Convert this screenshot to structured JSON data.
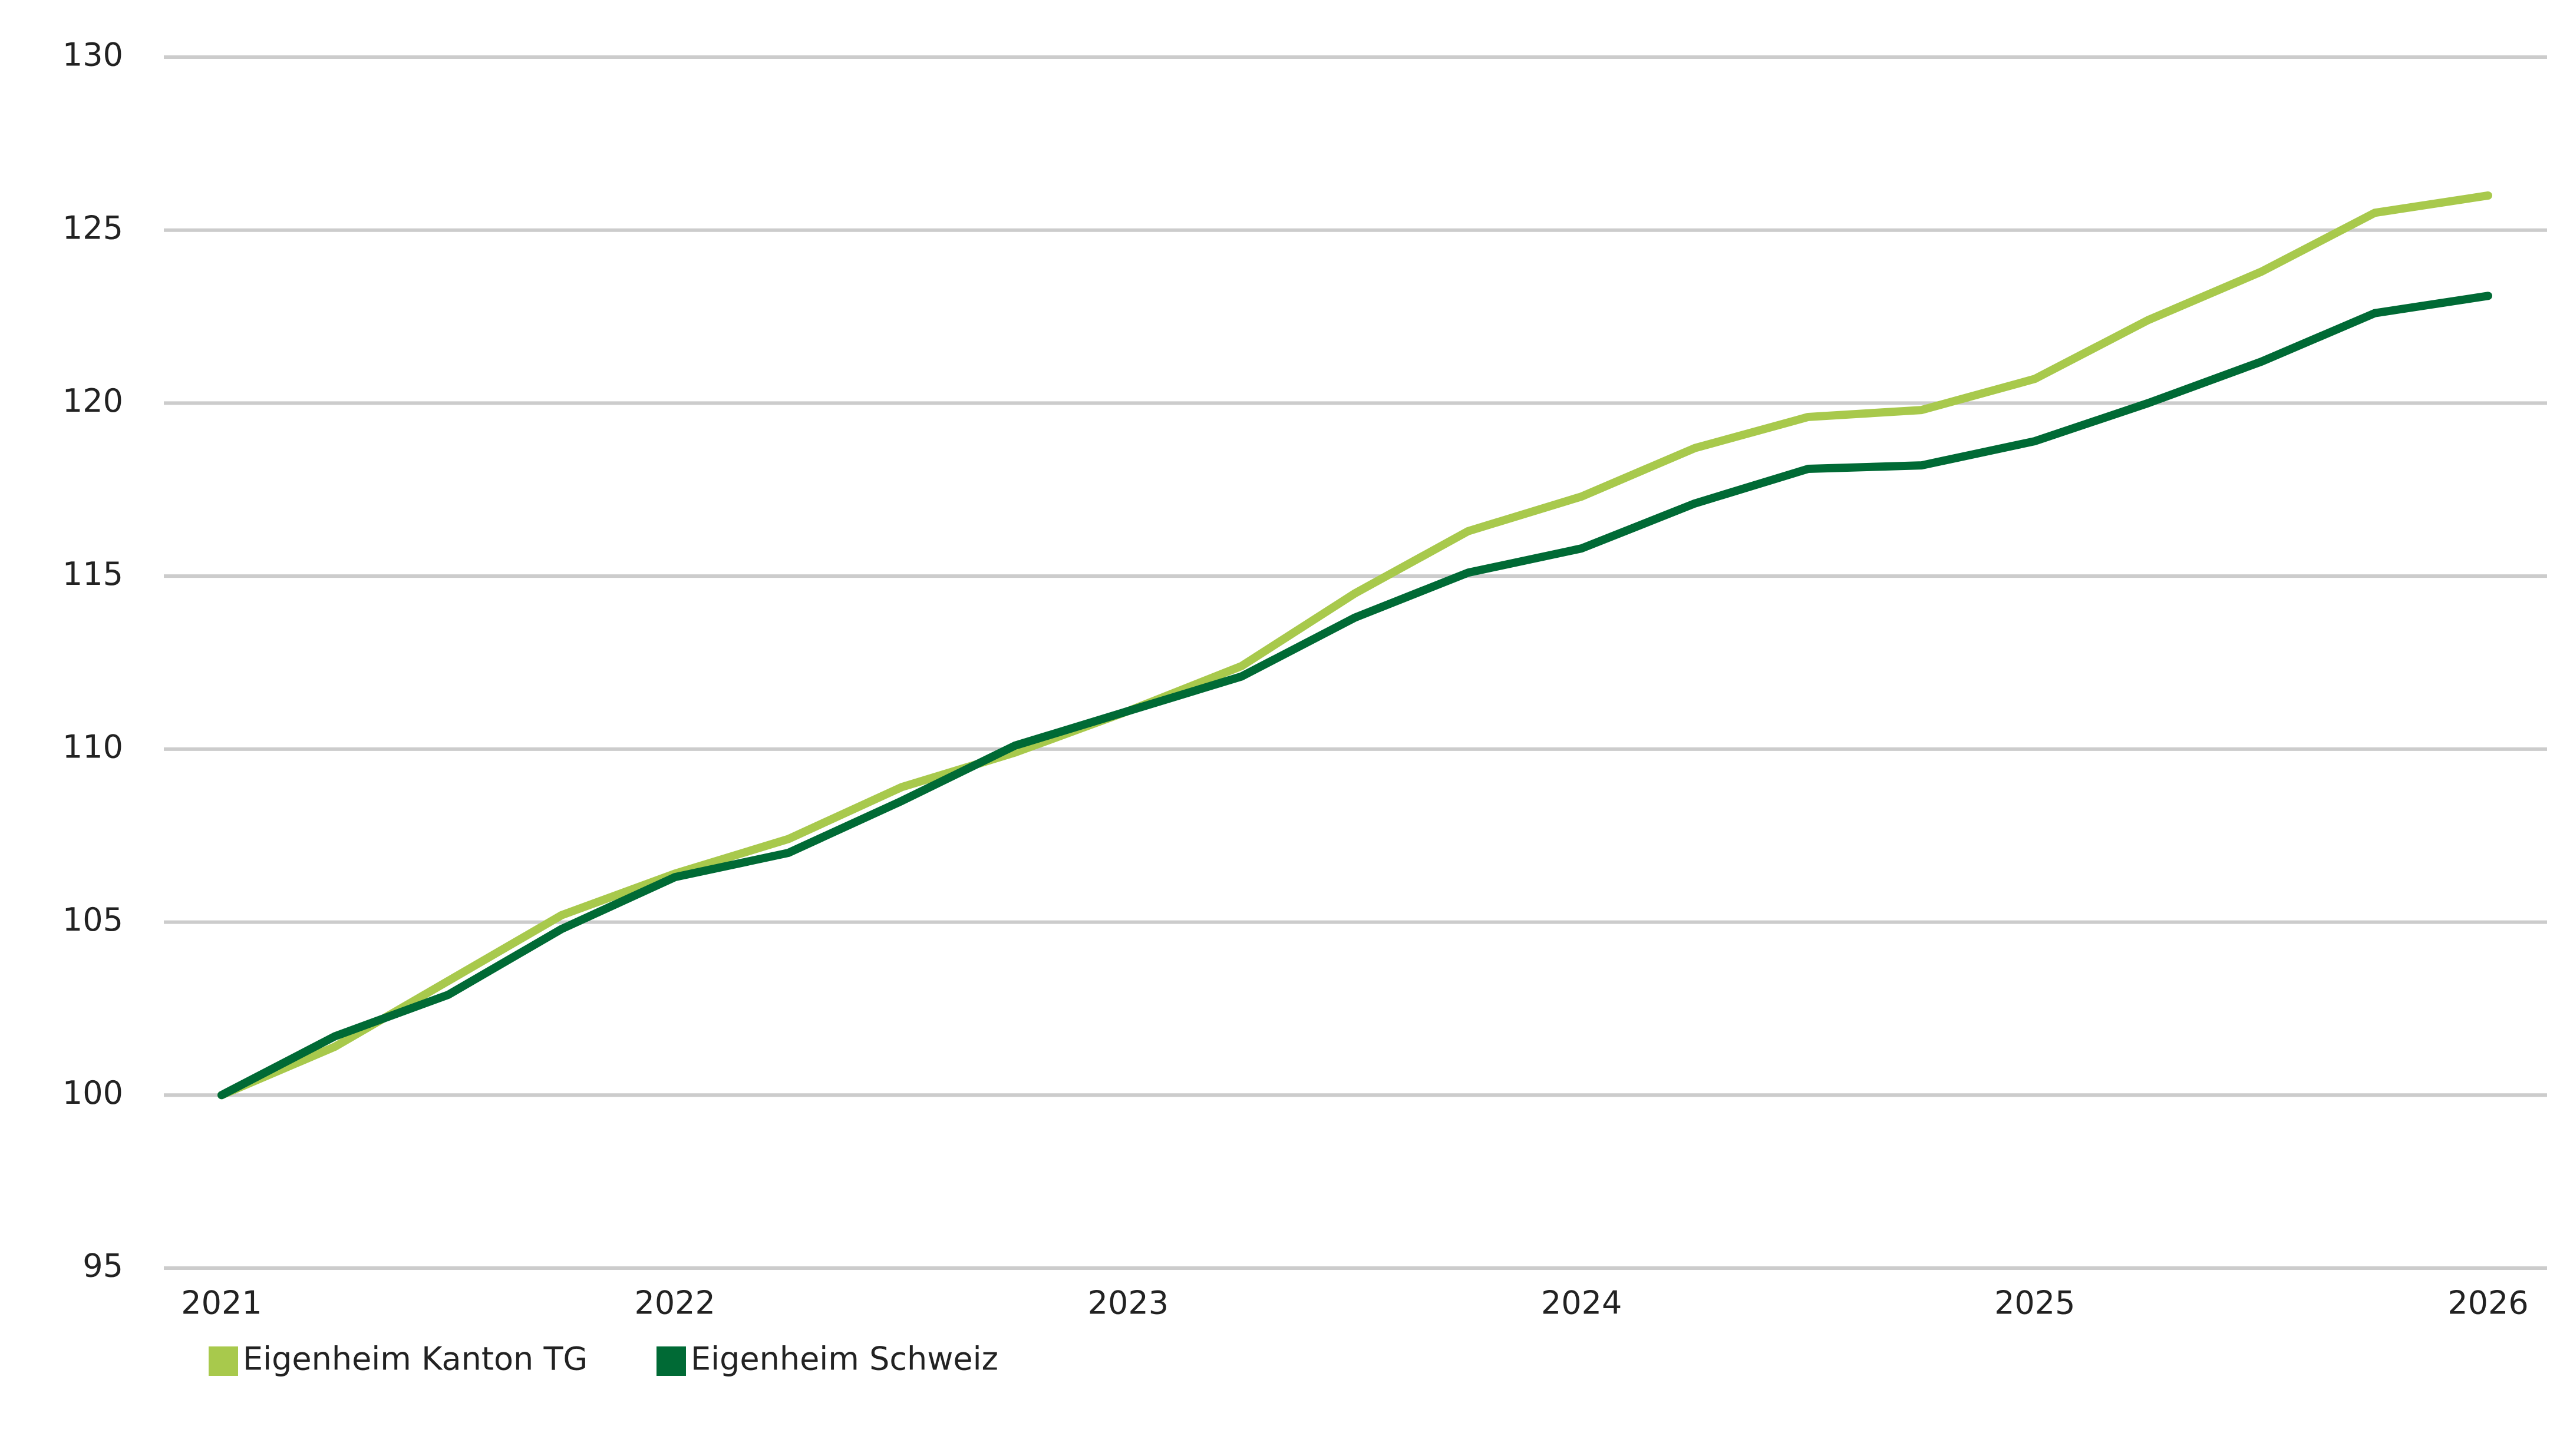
{
  "chart_data": {
    "type": "line",
    "x": [
      2021,
      2021.25,
      2021.5,
      2021.75,
      2022,
      2022.25,
      2022.5,
      2022.75,
      2023,
      2023.25,
      2023.5,
      2023.75,
      2024,
      2024.25,
      2024.5,
      2024.75,
      2025,
      2025.25,
      2025.5,
      2025.75,
      2026
    ],
    "series": [
      {
        "name": "Eigenheim Kanton TG",
        "color": "#a8c94c",
        "values": [
          100,
          101.4,
          103.3,
          105.2,
          106.4,
          107.4,
          108.9,
          109.9,
          111.1,
          112.4,
          114.5,
          116.3,
          117.3,
          118.7,
          119.6,
          119.8,
          120.7,
          122.4,
          123.8,
          125.5,
          126.0
        ]
      },
      {
        "name": "Eigenheim Schweiz",
        "color": "#006a35",
        "values": [
          100,
          101.7,
          102.9,
          104.8,
          106.3,
          107.0,
          108.5,
          110.1,
          111.1,
          112.1,
          113.8,
          115.1,
          115.8,
          117.1,
          118.1,
          118.2,
          118.9,
          120.0,
          121.2,
          122.6,
          123.1
        ]
      }
    ],
    "xlim": [
      2021,
      2026
    ],
    "xticks": [
      2021,
      2022,
      2023,
      2024,
      2025,
      2026
    ],
    "ylim": [
      95,
      130
    ],
    "yticks": [
      95,
      100,
      105,
      110,
      115,
      120,
      125,
      130
    ],
    "grid": true,
    "legend": "bottom-left"
  }
}
